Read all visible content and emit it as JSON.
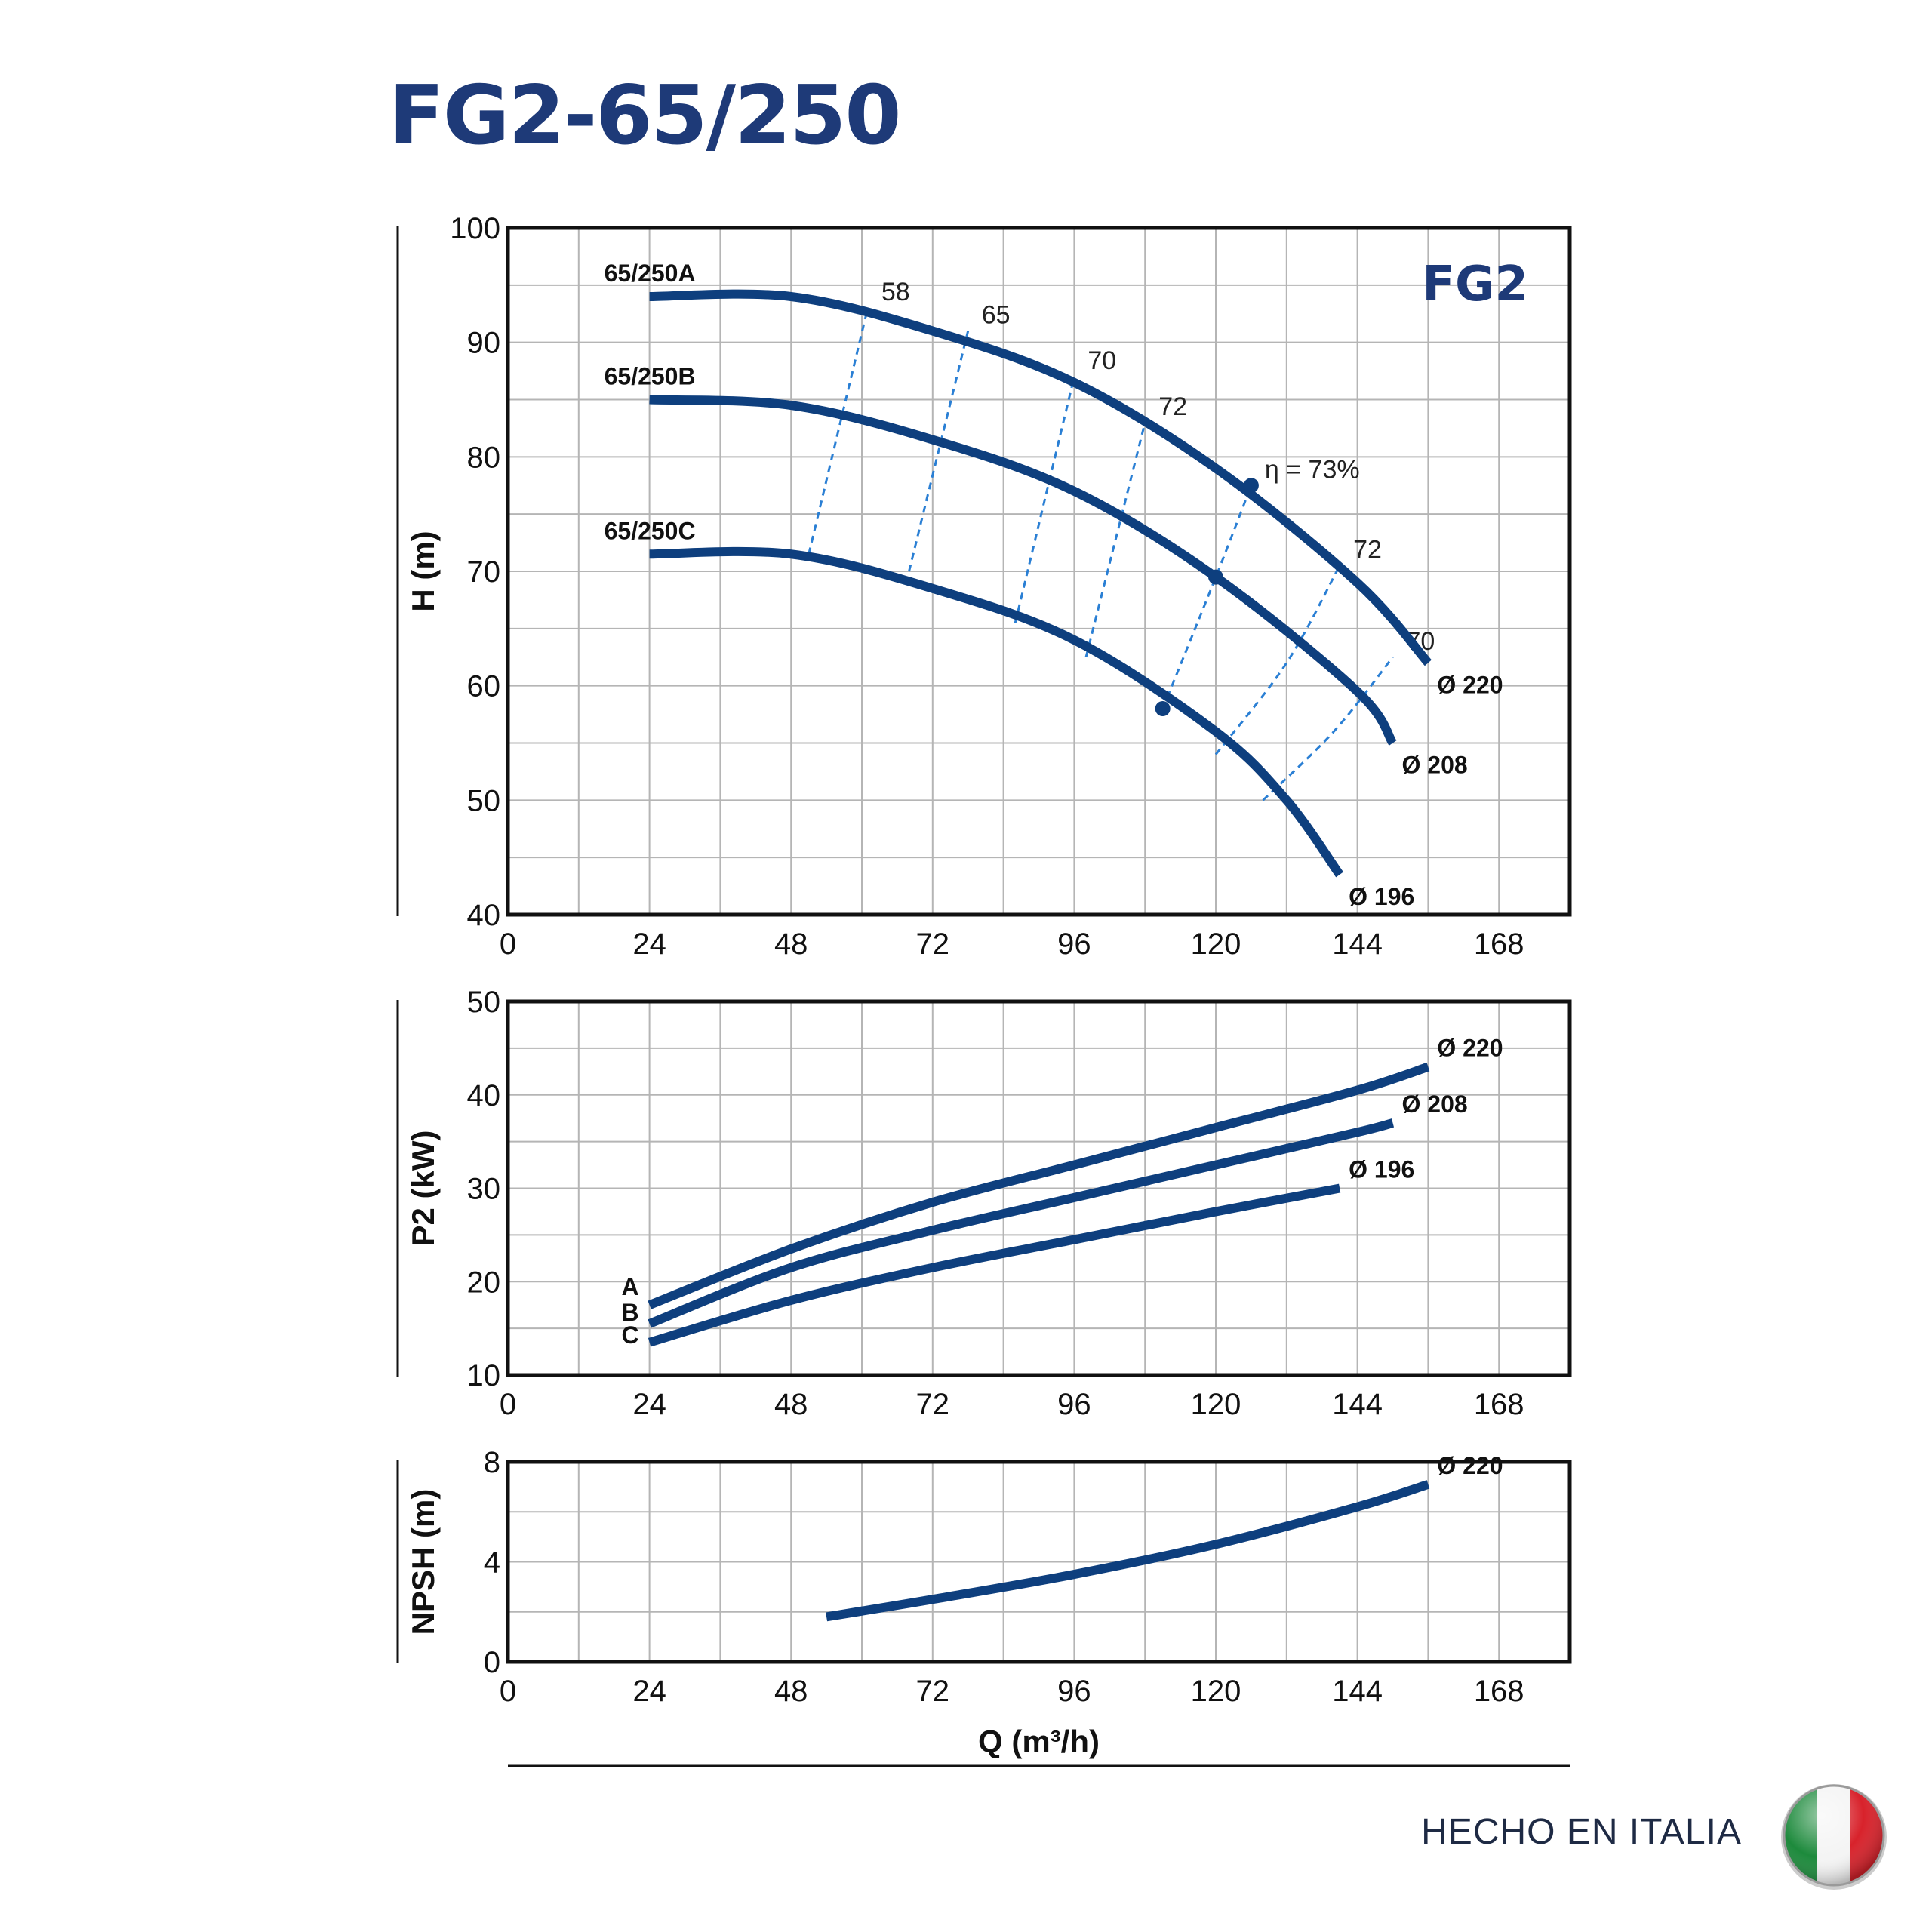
{
  "title": "FG2-65/250",
  "footer": {
    "text": "HECHO EN ITALIA",
    "flag": "italy-flag-badge"
  },
  "colors": {
    "curve": "#0e3f7e",
    "efficiency": "#2a7fd4",
    "grid": "#b5b5b5",
    "frame": "#111111",
    "title": "#1e3a78"
  },
  "chart_data": [
    {
      "type": "line",
      "brand": "FG2",
      "ylabel": "H (m)",
      "xlabel": "",
      "xlim": [
        0,
        180
      ],
      "ylim": [
        40,
        100
      ],
      "xticks": [
        "0",
        "24",
        "48",
        "72",
        "96",
        "120",
        "144",
        "168"
      ],
      "yticks": [
        "40",
        "50",
        "60",
        "70",
        "80",
        "90",
        "100"
      ],
      "grid": true,
      "series": [
        {
          "name": "65/250A",
          "end_label": "Ø 220",
          "points": [
            [
              24,
              94
            ],
            [
              48,
              94
            ],
            [
              72,
              91
            ],
            [
              96,
              86.5
            ],
            [
              120,
              79
            ],
            [
              144,
              69
            ],
            [
              156,
              62
            ]
          ]
        },
        {
          "name": "65/250B",
          "end_label": "Ø 208",
          "points": [
            [
              24,
              85
            ],
            [
              48,
              84.5
            ],
            [
              72,
              81.5
            ],
            [
              96,
              77
            ],
            [
              120,
              69.5
            ],
            [
              144,
              59.5
            ],
            [
              150,
              55
            ]
          ]
        },
        {
          "name": "65/250C",
          "end_label": "Ø 196",
          "points": [
            [
              24,
              71.5
            ],
            [
              48,
              71.5
            ],
            [
              72,
              68.5
            ],
            [
              96,
              64
            ],
            [
              120,
              56
            ],
            [
              132,
              50
            ],
            [
              141,
              43.5
            ]
          ]
        }
      ],
      "efficiency_lines": [
        {
          "label": "58",
          "points": [
            [
              51,
              71.5
            ],
            [
              61,
              93
            ]
          ]
        },
        {
          "label": "65",
          "points": [
            [
              68,
              70
            ],
            [
              78,
              91
            ]
          ]
        },
        {
          "label": "70",
          "points": [
            [
              86,
              65.5
            ],
            [
              96,
              87
            ]
          ]
        },
        {
          "label": "72",
          "points": [
            [
              98,
              62.5
            ],
            [
              108,
              83
            ]
          ]
        },
        {
          "label": "η = 73%",
          "points": [
            [
              111,
              58
            ],
            [
              120,
              69.5
            ],
            [
              126,
              77.5
            ]
          ]
        },
        {
          "label": "72",
          "points": [
            [
              120,
              54
            ],
            [
              132,
              62
            ],
            [
              141,
              70.5
            ]
          ]
        },
        {
          "label": "70",
          "points": [
            [
              128,
              50
            ],
            [
              140,
              56
            ],
            [
              150,
              62.5
            ]
          ]
        }
      ]
    },
    {
      "type": "line",
      "ylabel": "P2 (kW)",
      "xlabel": "",
      "xlim": [
        0,
        180
      ],
      "ylim": [
        10,
        50
      ],
      "xticks": [
        "0",
        "24",
        "48",
        "72",
        "96",
        "120",
        "144",
        "168"
      ],
      "yticks": [
        "10",
        "20",
        "30",
        "40",
        "50"
      ],
      "grid": true,
      "series": [
        {
          "name": "A",
          "end_label": "Ø 220",
          "points": [
            [
              24,
              17.5
            ],
            [
              48,
              23.5
            ],
            [
              72,
              28.5
            ],
            [
              96,
              32.5
            ],
            [
              120,
              36.5
            ],
            [
              144,
              40.5
            ],
            [
              156,
              43
            ]
          ]
        },
        {
          "name": "B",
          "end_label": "Ø 208",
          "points": [
            [
              24,
              15.5
            ],
            [
              48,
              21.5
            ],
            [
              72,
              25.5
            ],
            [
              96,
              29
            ],
            [
              120,
              32.5
            ],
            [
              144,
              36
            ],
            [
              150,
              37
            ]
          ]
        },
        {
          "name": "C",
          "end_label": "Ø 196",
          "points": [
            [
              24,
              13.5
            ],
            [
              48,
              18
            ],
            [
              72,
              21.5
            ],
            [
              96,
              24.5
            ],
            [
              120,
              27.5
            ],
            [
              141,
              30
            ]
          ]
        }
      ]
    },
    {
      "type": "line",
      "ylabel": "NPSH (m)",
      "xlabel": "Q (m³/h)",
      "xlim": [
        0,
        180
      ],
      "ylim": [
        0,
        8
      ],
      "xticks": [
        "0",
        "24",
        "48",
        "72",
        "96",
        "120",
        "144",
        "168"
      ],
      "yticks": [
        "0",
        "4",
        "8"
      ],
      "grid": true,
      "series": [
        {
          "name": "",
          "end_label": "Ø 220",
          "points": [
            [
              54,
              1.8
            ],
            [
              72,
              2.5
            ],
            [
              96,
              3.5
            ],
            [
              120,
              4.7
            ],
            [
              144,
              6.2
            ],
            [
              156,
              7.1
            ]
          ]
        }
      ]
    }
  ]
}
